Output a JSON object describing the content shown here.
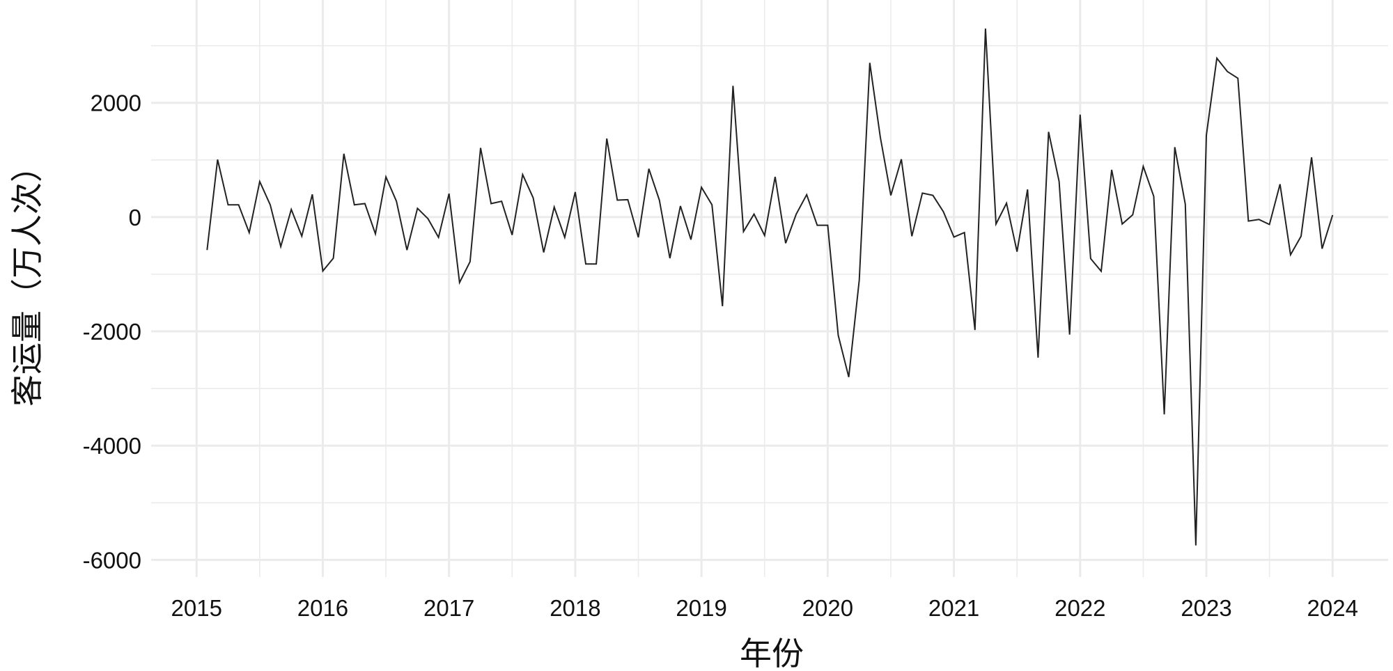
{
  "chart_data": {
    "type": "line",
    "title": "",
    "xlabel": "年份",
    "ylabel": "客运量（万人次）",
    "xlim": [
      2014.64,
      2024.44
    ],
    "ylim": [
      -6300,
      3800
    ],
    "x_ticks": [
      2015,
      2016,
      2017,
      2018,
      2019,
      2020,
      2021,
      2022,
      2023,
      2024
    ],
    "x_tick_labels": [
      "2015",
      "2016",
      "2017",
      "2018",
      "2019",
      "2020",
      "2021",
      "2022",
      "2023",
      "2024"
    ],
    "y_ticks": [
      -6000,
      -4000,
      -2000,
      0,
      2000
    ],
    "y_tick_labels": [
      "-6000",
      "-4000",
      "-2000",
      "0",
      "2000"
    ],
    "grid": true,
    "line_color": "#222222",
    "grid_color": "#ebebeb",
    "start_month": "2015-02",
    "frequency": "monthly",
    "series": [
      {
        "values": [
          -577,
          1008,
          215,
          215,
          -272,
          622,
          215,
          -516,
          134,
          -333,
          398,
          -943,
          -720,
          1110,
          215,
          236,
          -293,
          703,
          276,
          -577,
          154,
          -28,
          -354,
          410,
          -1146,
          -780,
          1211,
          236,
          276,
          -313,
          744,
          337,
          -618,
          175,
          -354,
          439,
          -821,
          -821,
          1374,
          297,
          305,
          -354,
          846,
          297,
          -720,
          195,
          -394,
          522,
          216,
          -1559,
          2298,
          -253,
          53,
          -322,
          706,
          -457,
          50,
          392,
          -143,
          -143,
          -2070,
          -2800,
          -1100,
          2700,
          1400,
          380,
          1012,
          -335,
          420,
          380,
          94,
          -350,
          -270,
          -1976,
          3300,
          -121,
          242,
          -605,
          484,
          -2460,
          1492,
          625,
          -2056,
          1794,
          -726,
          -948,
          827,
          -121,
          40,
          887,
          363,
          -3453,
          1224,
          224,
          -5747,
          1430,
          2782,
          2547,
          2430,
          -70,
          -41,
          -129,
          576,
          -659,
          -335,
          1047,
          -553,
          35
        ]
      }
    ]
  }
}
